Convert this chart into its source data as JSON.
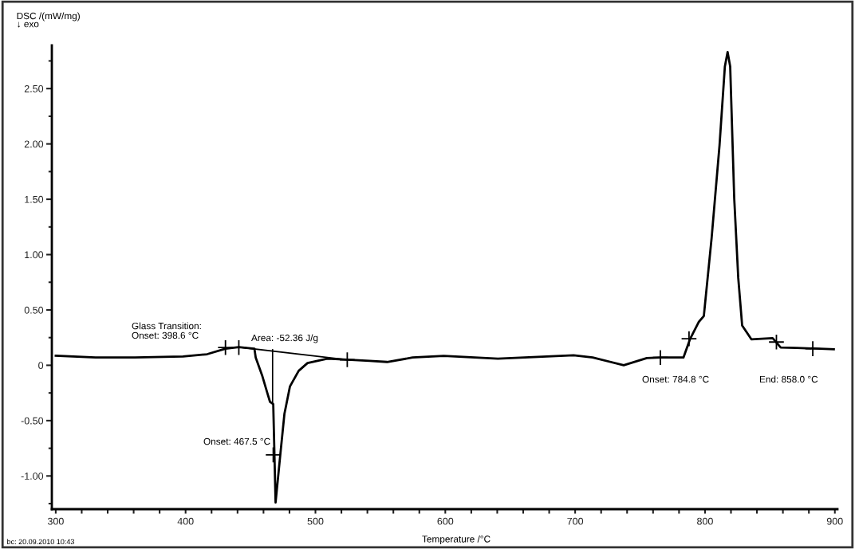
{
  "chart_data": {
    "type": "line",
    "xlabel": "Temperature /°C",
    "ylabel": "DSC /(mW/mg)\n↓ exo",
    "xlim": [
      297,
      902
    ],
    "ylim": [
      -1.3,
      2.89
    ],
    "xticks": [
      300,
      {
        "value": 320,
        "label": null
      },
      {
        "value": 340,
        "label": null
      },
      {
        "value": 360,
        "label": null
      },
      {
        "value": 380,
        "label": null
      },
      400,
      {
        "value": 420,
        "label": null
      },
      {
        "value": 440,
        "label": null
      },
      {
        "value": 460,
        "label": null
      },
      {
        "value": 480,
        "label": null
      },
      500,
      {
        "value": 520,
        "label": null
      },
      {
        "value": 540,
        "label": null
      },
      {
        "value": 560,
        "label": null
      },
      {
        "value": 580,
        "label": null
      },
      600,
      {
        "value": 620,
        "label": null
      },
      {
        "value": 640,
        "label": null
      },
      {
        "value": 660,
        "label": null
      },
      {
        "value": 680,
        "label": null
      },
      700,
      {
        "value": 720,
        "label": null
      },
      {
        "value": 740,
        "label": null
      },
      {
        "value": 760,
        "label": null
      },
      {
        "value": 780,
        "label": null
      },
      800,
      {
        "value": 820,
        "label": null
      },
      {
        "value": 840,
        "label": null
      },
      {
        "value": 860,
        "label": null
      },
      {
        "value": 880,
        "label": null
      },
      900
    ],
    "yticks": [
      {
        "value": -1.25,
        "label": null
      },
      {
        "value": -1.0,
        "label": "-1.00"
      },
      {
        "value": -0.75,
        "label": null
      },
      {
        "value": -0.5,
        "label": "-0.50"
      },
      {
        "value": -0.25,
        "label": null
      },
      0,
      {
        "value": 0.25,
        "label": null
      },
      {
        "value": 0.5,
        "label": "0.50"
      },
      {
        "value": 0.75,
        "label": null
      },
      {
        "value": 1.0,
        "label": "1.00"
      },
      {
        "value": 1.25,
        "label": null
      },
      {
        "value": 1.5,
        "label": "1.50"
      },
      {
        "value": 1.75,
        "label": null
      },
      {
        "value": 2.0,
        "label": "2.00"
      },
      {
        "value": 2.25,
        "label": null
      },
      {
        "value": 2.5,
        "label": "2.50"
      },
      {
        "value": 2.75,
        "label": null
      }
    ],
    "grid": false,
    "legend": false,
    "series": [
      {
        "color": "#000000",
        "line_style": "solid",
        "x": [
          300,
          330.7,
          361,
          398,
          416.6,
          430.7,
          441,
          453,
          454,
          458.9,
          463.2,
          465,
          467.5,
          469.3,
          473,
          476.1,
          480.4,
          487.1,
          493.9,
          509.2,
          524.5,
          541.7,
          555.2,
          574.8,
          598.8,
          640.5,
          698.8,
          713.5,
          737.4,
          755.2,
          765.6,
          783.4,
          788.6,
          795.1,
          799.1,
          805.1,
          811.2,
          815.3,
          817.4,
          819.4,
          822.5,
          825.6,
          828.6,
          835.7,
          852.1,
          858.3,
          870.6,
          899.2
        ],
        "values": [
          0.086,
          0.07,
          0.07,
          0.08,
          0.1,
          0.15,
          0.164,
          0.15,
          0.07,
          -0.09,
          -0.26,
          -0.33,
          -0.35,
          -1.24,
          -0.8,
          -0.44,
          -0.19,
          -0.05,
          0.02,
          0.06,
          0.05,
          0.04,
          0.03,
          0.07,
          0.085,
          0.06,
          0.09,
          0.07,
          0.0,
          0.065,
          0.07,
          0.07,
          0.24,
          0.39,
          0.445,
          1.15,
          1.99,
          2.7,
          2.83,
          2.7,
          1.51,
          0.79,
          0.36,
          0.235,
          0.245,
          0.16,
          0.157,
          0.145
        ]
      },
      {
        "color": "#000000",
        "line_style": "solid",
        "x": [
          441,
          524.5
        ],
        "values": [
          0.164,
          0.05
        ]
      },
      {
        "color": "#000000",
        "line_style": "solid",
        "x": [
          467,
          467
        ],
        "values": [
          0.14,
          -0.35
        ]
      },
      {
        "type": "scatter",
        "color": "#000000",
        "marker": "cross",
        "x": [
          430.7,
          441,
          524.5,
          467.5,
          765.6,
          787.7,
          855,
          883
        ],
        "values": [
          0.16,
          0.16,
          0.05,
          -0.81,
          0.07,
          0.24,
          0.21,
          0.15
        ]
      }
    ],
    "annotations": [
      "Glass Transition:\nOnset: 398.6 °C",
      "Area: -52.36 J/g",
      "Onset: 467.5 °C",
      "Onset: 784.8 °C",
      "End: 858.0 °C",
      "bc: 20.09.2010 10:43"
    ]
  }
}
